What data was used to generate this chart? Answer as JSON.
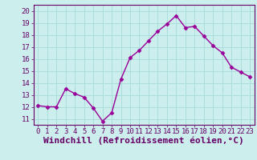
{
  "x": [
    0,
    1,
    2,
    3,
    4,
    5,
    6,
    7,
    8,
    9,
    10,
    11,
    12,
    13,
    14,
    15,
    16,
    17,
    18,
    19,
    20,
    21,
    22,
    23
  ],
  "y": [
    12.1,
    12.0,
    12.0,
    13.5,
    13.1,
    12.8,
    11.9,
    10.8,
    11.5,
    14.3,
    16.1,
    16.7,
    17.5,
    18.3,
    18.9,
    19.6,
    18.6,
    18.7,
    17.9,
    17.1,
    16.5,
    15.3,
    14.9,
    14.5
  ],
  "line_color": "#990099",
  "marker": "D",
  "marker_size": 2.5,
  "bg_color": "#cceeed",
  "grid_color": "#aadddd",
  "xlabel": "Windchill (Refroidissement éolien,°C)",
  "xlabel_color": "#660066",
  "ylim": [
    10.5,
    20.5
  ],
  "yticks": [
    11,
    12,
    13,
    14,
    15,
    16,
    17,
    18,
    19,
    20
  ],
  "xtick_labels": [
    "0",
    "1",
    "2",
    "3",
    "4",
    "5",
    "6",
    "7",
    "8",
    "9",
    "10",
    "11",
    "12",
    "13",
    "14",
    "15",
    "16",
    "17",
    "18",
    "19",
    "20",
    "21",
    "22",
    "23"
  ],
  "tick_label_size": 6.5,
  "xlabel_fontsize": 8,
  "line_width": 1.0,
  "spine_color": "#660066",
  "tick_color": "#660066"
}
